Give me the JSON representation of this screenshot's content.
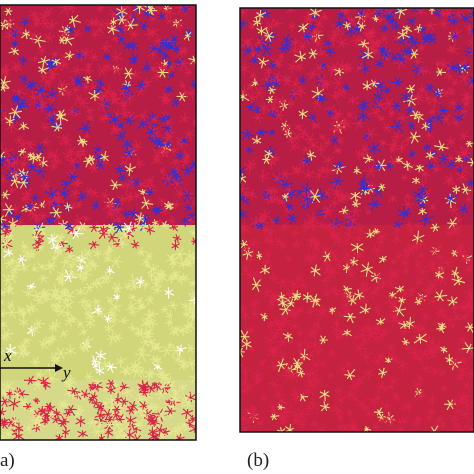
{
  "panels": [
    {
      "label": "a)"
    },
    {
      "label": "(b)"
    }
  ],
  "axes": {
    "x": "x",
    "y": "y"
  }
}
